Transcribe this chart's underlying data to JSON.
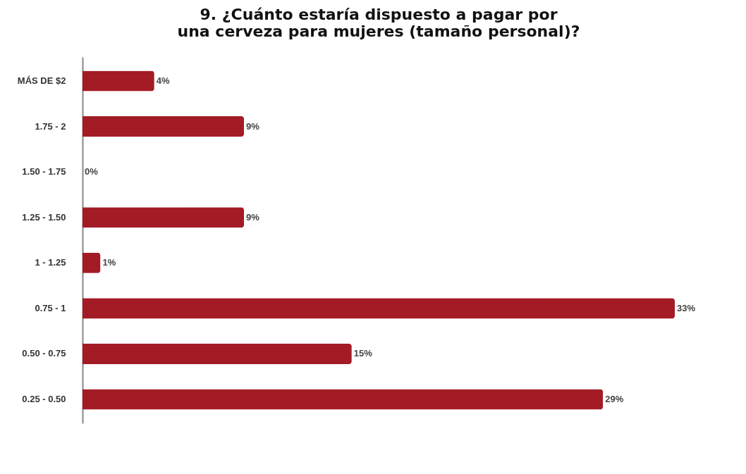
{
  "chart_data": {
    "type": "bar",
    "orientation": "horizontal",
    "title": "9. ¿Cuánto estaría dispuesto a pagar por una cerveza para mujeres (tamaño personal)?",
    "categories": [
      "MÁS DE $2",
      "1.75    -    2",
      "1.50   -  1.75",
      "1.25   -  1.50",
      "1       -  1.25",
      "0.75    -    1",
      "0.50   -  0.75",
      "0.25   -  0.50"
    ],
    "values": [
      4,
      9,
      0,
      9,
      1,
      33,
      15,
      29
    ],
    "value_labels": [
      "4%",
      "9%",
      "0%",
      "9%",
      "1%",
      "33%",
      "15%",
      "29%"
    ],
    "color": "#a31b25"
  }
}
